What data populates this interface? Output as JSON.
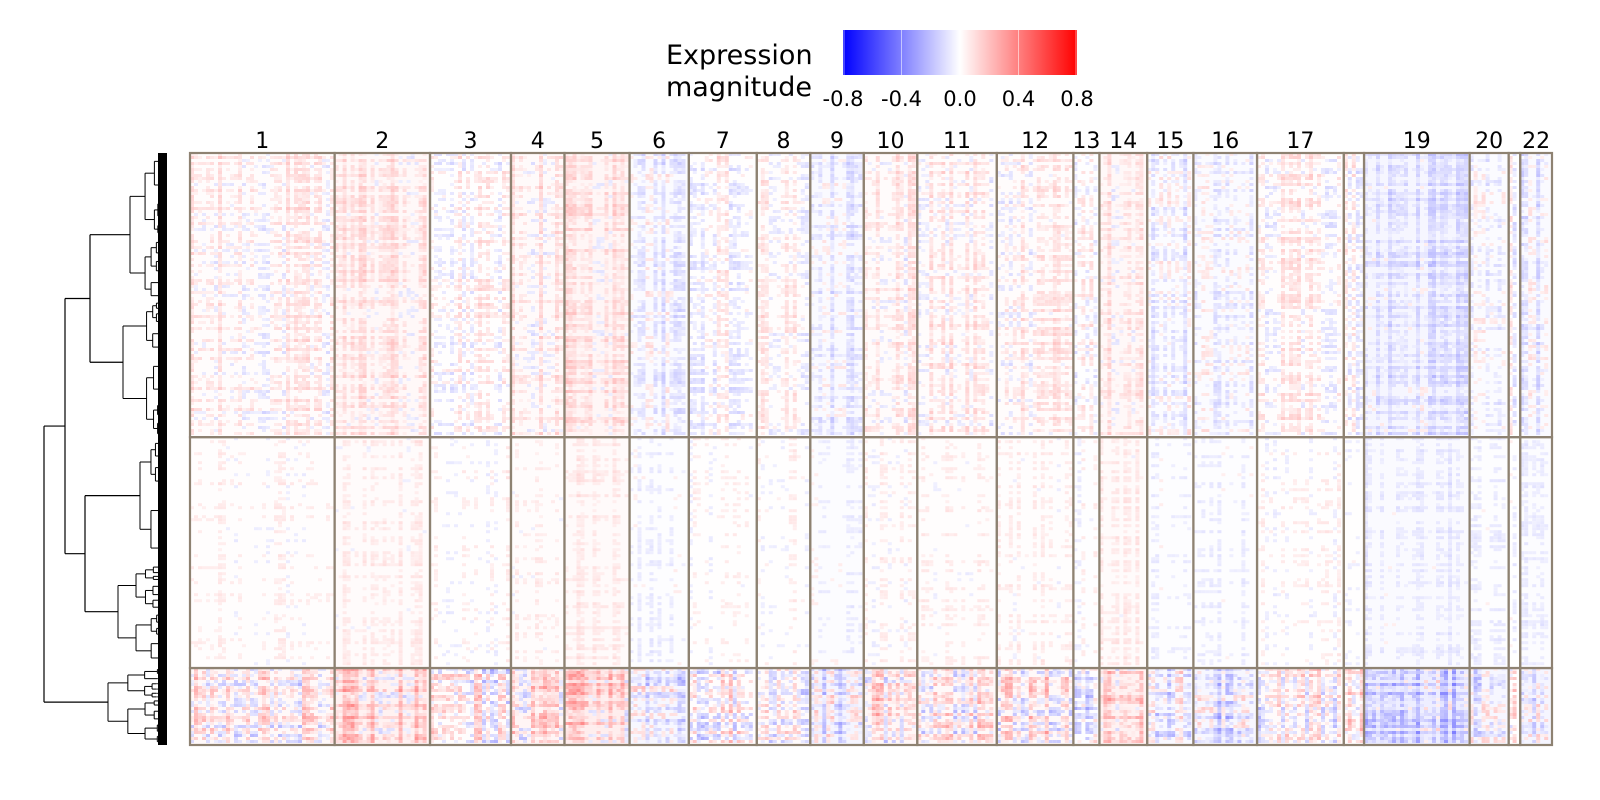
{
  "chart_data": {
    "type": "heatmap",
    "title": "",
    "xlabel": "",
    "ylabel": "",
    "legend": {
      "title_line1": "Expression",
      "title_line2": "magnitude",
      "placement": "top-center",
      "range": [
        -0.8,
        0.8
      ],
      "ticks": [
        "-0.8",
        "-0.4",
        "0.0",
        "0.4",
        "0.8"
      ],
      "tick_values": [
        -0.8,
        -0.4,
        0.0,
        0.4,
        0.8
      ],
      "colors": {
        "low": "#0000ff",
        "mid": "#ffffff",
        "high": "#ff0000"
      }
    },
    "column_groups": [
      {
        "label": "1",
        "weight": 1.0
      },
      {
        "label": "2",
        "weight": 0.66
      },
      {
        "label": "3",
        "weight": 0.56
      },
      {
        "label": "4",
        "weight": 0.37
      },
      {
        "label": "5",
        "weight": 0.45
      },
      {
        "label": "6",
        "weight": 0.41
      },
      {
        "label": "7",
        "weight": 0.47
      },
      {
        "label": "8",
        "weight": 0.37
      },
      {
        "label": "9",
        "weight": 0.37
      },
      {
        "label": "10",
        "weight": 0.37
      },
      {
        "label": "11",
        "weight": 0.55
      },
      {
        "label": "12",
        "weight": 0.53
      },
      {
        "label": "13",
        "weight": 0.18
      },
      {
        "label": "14",
        "weight": 0.33
      },
      {
        "label": "15",
        "weight": 0.32
      },
      {
        "label": "16",
        "weight": 0.44
      },
      {
        "label": "17",
        "weight": 0.6
      },
      {
        "label": "",
        "weight": 0.14
      },
      {
        "label": "19",
        "weight": 0.73
      },
      {
        "label": "20",
        "weight": 0.27
      },
      {
        "label": "",
        "weight": 0.08
      },
      {
        "label": "22",
        "weight": 0.22
      }
    ],
    "row_clusters": [
      {
        "id": "A",
        "weight": 0.48,
        "intensity": 0.55
      },
      {
        "id": "B",
        "weight": 0.39,
        "intensity": 0.3
      },
      {
        "id": "C",
        "weight": 0.13,
        "intensity": 1.0
      }
    ],
    "group_bias": [
      0.15,
      0.35,
      0.05,
      0.25,
      0.45,
      -0.2,
      0.05,
      0.1,
      -0.25,
      0.2,
      0.15,
      0.15,
      -0.05,
      0.35,
      -0.15,
      -0.2,
      0.1,
      0.05,
      -0.45,
      -0.2,
      0.0,
      -0.25
    ],
    "dendrogram": {
      "side": "left",
      "clusters": 3
    }
  },
  "colors": {
    "grid_border": "#8e8272",
    "dendrogram": "#000000",
    "background": "#ffffff"
  }
}
